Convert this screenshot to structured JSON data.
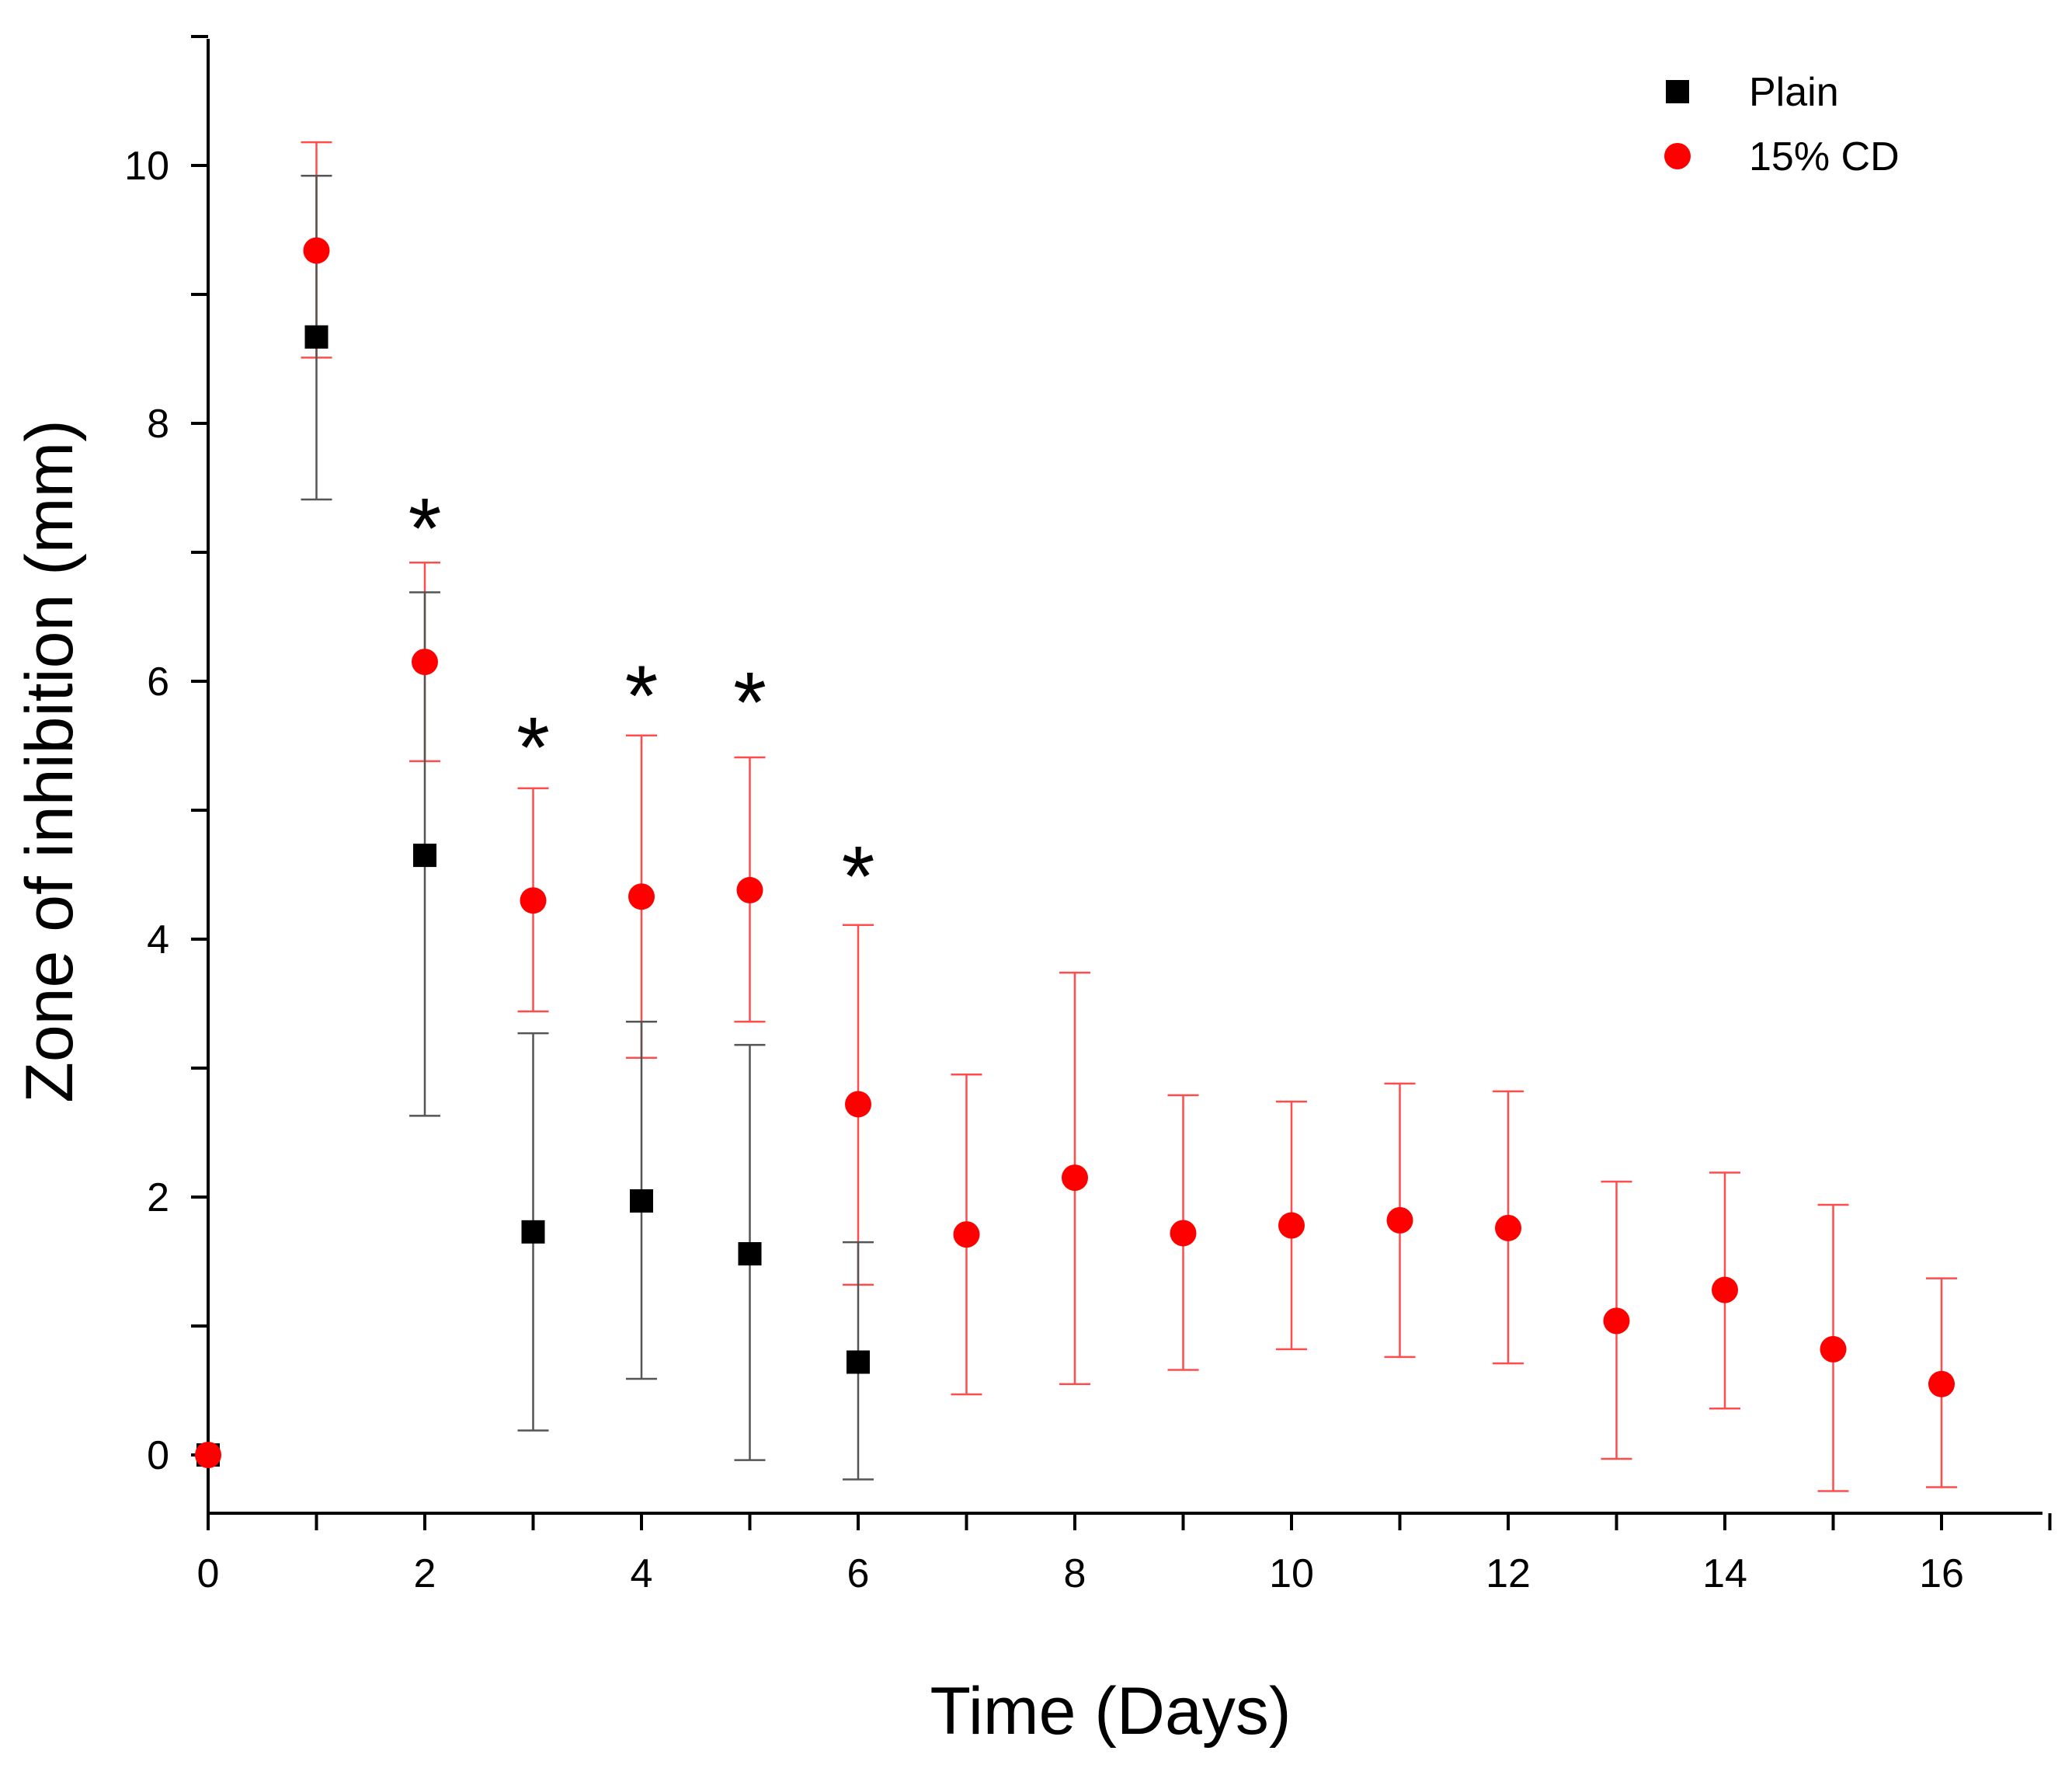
{
  "chart_data": {
    "type": "scatter",
    "title": "",
    "xlabel": "Time (Days)",
    "ylabel": "Zone of inhibition (mm)",
    "xlim": [
      0,
      17
    ],
    "ylim": [
      -0.45,
      11
    ],
    "xticks": [
      0,
      2,
      4,
      6,
      8,
      10,
      12,
      14,
      16
    ],
    "xtick_labels": [
      "0",
      "2",
      "4",
      "6",
      "8",
      "10",
      "12",
      "14",
      "16"
    ],
    "xminor": [
      1,
      3,
      5,
      7,
      9,
      11,
      13,
      15,
      17
    ],
    "yticks": [
      0,
      2,
      4,
      6,
      8,
      10
    ],
    "ytick_labels": [
      "0",
      "2",
      "4",
      "6",
      "8",
      "10"
    ],
    "yminor": [
      1,
      3,
      5,
      7,
      9,
      11
    ],
    "legend_position": "top-right",
    "series": [
      {
        "name": "Plain",
        "marker": "square",
        "color": "#000000",
        "errorbar_color": "#555555",
        "x": [
          0,
          1,
          2,
          3,
          4,
          5,
          6
        ],
        "y": [
          0,
          8.67,
          4.65,
          1.73,
          1.97,
          1.56,
          0.72
        ],
        "y_lower": [
          0,
          7.41,
          2.63,
          0.19,
          0.59,
          -0.04,
          -0.19
        ],
        "y_upper": [
          0,
          9.92,
          6.69,
          3.27,
          3.36,
          3.18,
          1.65
        ]
      },
      {
        "name": "15% CD",
        "marker": "circle",
        "color": "#ff0000",
        "errorbar_color": "#ff4d4d",
        "x": [
          0,
          1,
          2,
          3,
          4,
          5,
          6,
          7,
          8,
          9,
          10,
          11,
          12,
          13,
          14,
          15,
          16
        ],
        "y": [
          0,
          9.34,
          6.15,
          4.3,
          4.33,
          4.38,
          2.72,
          1.71,
          2.15,
          1.72,
          1.78,
          1.82,
          1.76,
          1.04,
          1.28,
          0.82,
          0.55
        ],
        "y_lower": [
          0,
          8.51,
          5.38,
          3.44,
          3.08,
          3.36,
          1.32,
          0.47,
          0.55,
          0.66,
          0.82,
          0.76,
          0.71,
          -0.03,
          0.36,
          -0.28,
          -0.25
        ],
        "y_upper": [
          0,
          10.18,
          6.92,
          5.17,
          5.58,
          5.41,
          4.11,
          2.95,
          3.74,
          2.79,
          2.74,
          2.88,
          2.82,
          2.12,
          2.19,
          1.94,
          1.37
        ]
      }
    ],
    "annotations": [
      {
        "text": "*",
        "x": 2,
        "y": 7.2,
        "meaning": "significant"
      },
      {
        "text": "*",
        "x": 3,
        "y": 5.5,
        "meaning": "significant"
      },
      {
        "text": "*",
        "x": 4,
        "y": 5.9,
        "meaning": "significant"
      },
      {
        "text": "*",
        "x": 5,
        "y": 5.85,
        "meaning": "significant"
      },
      {
        "text": "*",
        "x": 6,
        "y": 4.5,
        "meaning": "significant"
      }
    ]
  }
}
